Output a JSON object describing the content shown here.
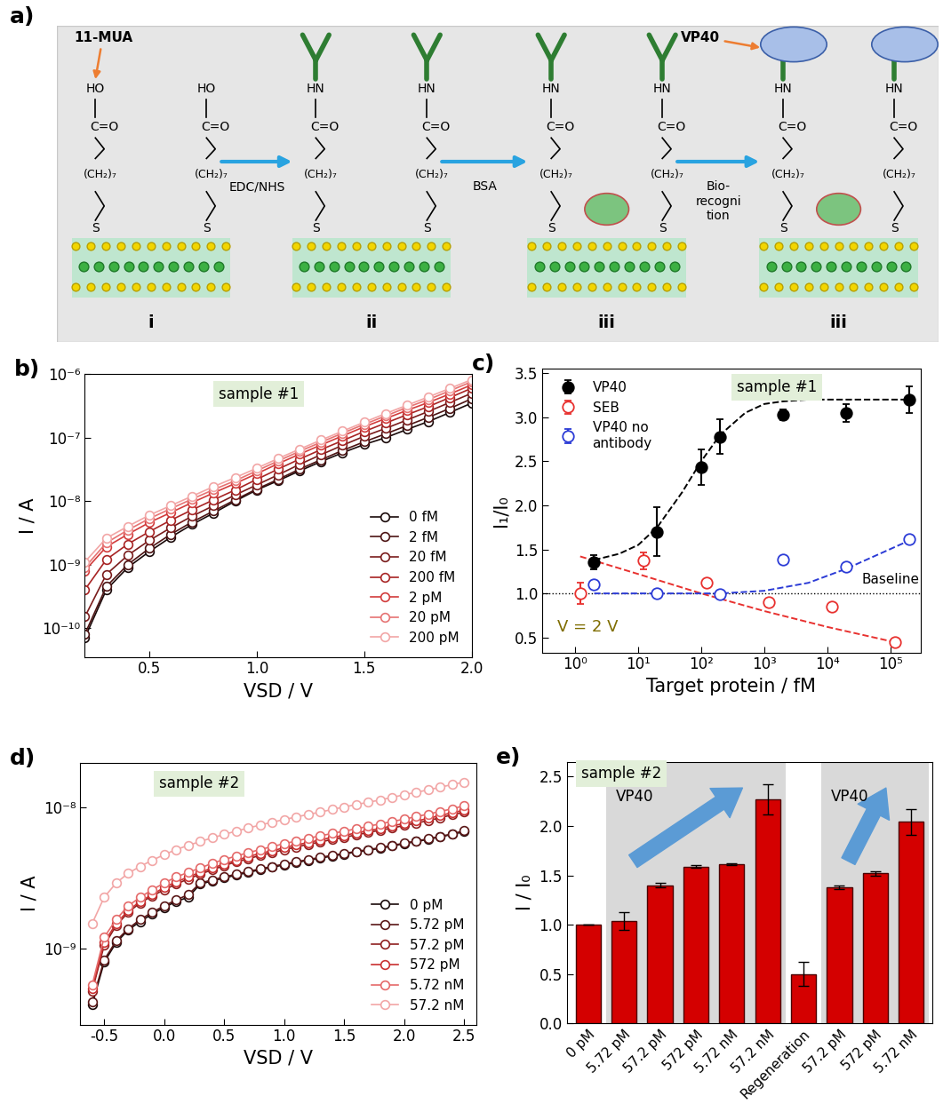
{
  "schematic": {
    "panel": "a)",
    "chain": {
      "anchor": "S",
      "spacer": "(CH₂)₇",
      "group": "C=O"
    },
    "stages": [
      {
        "label": "i",
        "head": "HO",
        "antibody": false,
        "bsa": false,
        "target": false
      },
      {
        "label": "ii",
        "head": "HN",
        "antibody": true,
        "bsa": false,
        "target": false
      },
      {
        "label": "iii",
        "head": "HN",
        "antibody": true,
        "bsa": true,
        "target": false
      },
      {
        "label": "iii",
        "head": "HN",
        "antibody": true,
        "bsa": true,
        "target": true
      }
    ],
    "steps": [
      "EDC/NHS",
      "BSA",
      "Bio-\nrecogni\ntion"
    ],
    "callouts": {
      "linker": "11-MUA",
      "target": "VP40"
    }
  },
  "chart_data": [
    {
      "type": "line",
      "panel": "b)",
      "tag": "sample #1",
      "log": "y",
      "legend": "lower right",
      "xlabel": "VSD / V",
      "ylabel": "I / A",
      "xlim": [
        0.2,
        2.0
      ],
      "xticks": [
        0.5,
        1.0,
        1.5,
        2.0
      ],
      "ylim": [
        3.5e-11,
        1e-06
      ],
      "yticks": [
        {
          "value": 1e-10,
          "label": "10⁻¹⁰"
        },
        {
          "value": 1e-09,
          "label": "10⁻⁹"
        },
        {
          "value": 1e-08,
          "label": "10⁻⁸"
        },
        {
          "value": 1e-07,
          "label": "10⁻⁷"
        },
        {
          "value": 1e-06,
          "label": "10⁻⁶"
        }
      ],
      "x": [
        0.2,
        0.3,
        0.4,
        0.5,
        0.6,
        0.7,
        0.8,
        0.9,
        1.0,
        1.1,
        1.2,
        1.3,
        1.4,
        1.5,
        1.6,
        1.7,
        1.8,
        1.9,
        2.0
      ],
      "series": [
        {
          "name": "0 fM",
          "color": "#1a0a0a",
          "marker": "open-circle",
          "line_style": "solid",
          "values": [
            7e-11,
            4e-10,
            9e-10,
            1.6e-09,
            2.7e-09,
            4.3e-09,
            6.5e-09,
            1e-08,
            1.5e-08,
            2.1e-08,
            3e-08,
            4.2e-08,
            5.8e-08,
            7.8e-08,
            1e-07,
            1.35e-07,
            1.8e-07,
            2.5e-07,
            3.5e-07
          ]
        },
        {
          "name": "2 fM",
          "color": "#4d1414",
          "marker": "open-circle",
          "line_style": "solid",
          "values": [
            8e-11,
            4.5e-10,
            1e-09,
            1.8e-09,
            3e-09,
            4.7e-09,
            7e-09,
            1.05e-08,
            1.55e-08,
            2.2e-08,
            3.2e-08,
            4.5e-08,
            6.3e-08,
            8.6e-08,
            1.15e-07,
            1.55e-07,
            2.1e-07,
            2.9e-07,
            4.1e-07
          ]
        },
        {
          "name": "20 fM",
          "color": "#7a1c1c",
          "marker": "open-circle",
          "line_style": "solid",
          "values": [
            1.5e-10,
            7e-10,
            1.4e-09,
            2.4e-09,
            3.8e-09,
            5.8e-09,
            8.5e-09,
            1.25e-08,
            1.8e-08,
            2.6e-08,
            3.8e-08,
            5.4e-08,
            7.6e-08,
            1.05e-07,
            1.4e-07,
            1.9e-07,
            2.6e-07,
            3.6e-07,
            5e-07
          ]
        },
        {
          "name": "200 fM",
          "color": "#a82424",
          "marker": "open-circle",
          "line_style": "solid",
          "values": [
            4e-10,
            1.2e-09,
            2.1e-09,
            3.3e-09,
            5e-09,
            7.3e-09,
            1.05e-08,
            1.5e-08,
            2.2e-08,
            3.2e-08,
            4.6e-08,
            6.5e-08,
            9e-08,
            1.25e-07,
            1.7e-07,
            2.3e-07,
            3.1e-07,
            4.3e-07,
            6e-07
          ]
        },
        {
          "name": "2 pM",
          "color": "#d23c3c",
          "marker": "open-circle",
          "line_style": "solid",
          "values": [
            8e-10,
            1.9e-09,
            3e-09,
            4.6e-09,
            6.6e-09,
            9.5e-09,
            1.35e-08,
            1.9e-08,
            2.7e-08,
            3.9e-08,
            5.5e-08,
            7.7e-08,
            1.07e-07,
            1.48e-07,
            2e-07,
            2.7e-07,
            3.6e-07,
            4.9e-07,
            6.8e-07
          ]
        },
        {
          "name": "20 pM",
          "color": "#e67373",
          "marker": "open-circle",
          "line_style": "solid",
          "values": [
            9e-10,
            2.2e-09,
            3.5e-09,
            5.3e-09,
            7.6e-09,
            1.08e-08,
            1.52e-08,
            2.1e-08,
            3e-08,
            4.3e-08,
            6.1e-08,
            8.5e-08,
            1.18e-07,
            1.62e-07,
            2.2e-07,
            3e-07,
            4e-07,
            5.5e-07,
            7.6e-07
          ]
        },
        {
          "name": "200 pM",
          "color": "#f2a6a6",
          "marker": "open-circle",
          "line_style": "solid",
          "values": [
            1.1e-09,
            2.6e-09,
            4e-09,
            6e-09,
            8.5e-09,
            1.2e-08,
            1.7e-08,
            2.35e-08,
            3.3e-08,
            4.7e-08,
            6.6e-08,
            9.2e-08,
            1.27e-07,
            1.75e-07,
            2.4e-07,
            3.25e-07,
            4.4e-07,
            6e-07,
            8.2e-07
          ]
        }
      ]
    },
    {
      "type": "scatter",
      "panel": "c)",
      "tag": "sample #1",
      "log": "x",
      "legend": "upper left",
      "xlabel": "Target protein / fM",
      "ylabel": "I₁/I₀",
      "xlim": [
        0.3,
        300000
      ],
      "xticks": [
        {
          "value": 1,
          "label": "10⁰"
        },
        {
          "value": 10,
          "label": "10¹"
        },
        {
          "value": 100,
          "label": "10²"
        },
        {
          "value": 1000,
          "label": "10³"
        },
        {
          "value": 10000,
          "label": "10⁴"
        },
        {
          "value": 100000,
          "label": "10⁵"
        }
      ],
      "ylim": [
        0.33,
        3.55
      ],
      "yticks": [
        0.5,
        1.0,
        1.5,
        2.0,
        2.5,
        3.0,
        3.5
      ],
      "series": [
        {
          "name": "VP40",
          "color": "#000000",
          "marker": "circle",
          "x": [
            2,
            20,
            100,
            200,
            2000,
            20000,
            200000
          ],
          "values": [
            1.35,
            1.7,
            2.43,
            2.78,
            3.03,
            3.05,
            3.2
          ],
          "errors": [
            0.08,
            0.28,
            0.2,
            0.2,
            0.06,
            0.1,
            0.15
          ],
          "fit": {
            "line_style": "dashed",
            "x": [
              2,
              5,
              10,
              20,
              50,
              100,
              200,
              500,
              1000,
              2000,
              5000,
              10000,
              100000,
              200000
            ],
            "values": [
              1.38,
              1.45,
              1.55,
              1.75,
              2.15,
              2.5,
              2.8,
              3.05,
              3.15,
              3.18,
              3.2,
              3.2,
              3.2,
              3.2
            ]
          }
        },
        {
          "name": "SEB",
          "color": "#e8312f",
          "marker": "open-circle",
          "x": [
            1.2,
            12,
            120,
            1200,
            12000,
            120000
          ],
          "values": [
            1.0,
            1.37,
            1.12,
            0.9,
            0.85,
            0.45
          ],
          "errors": [
            0.12,
            0.1,
            0.03,
            0.02,
            0.02,
            0.03
          ],
          "fit": {
            "line_style": "dashed",
            "x": [
              1.2,
              10,
              100,
              1000,
              10000,
              130000
            ],
            "values": [
              1.42,
              1.22,
              1.0,
              0.8,
              0.62,
              0.44
            ]
          }
        },
        {
          "name": "VP40 no\nantibody",
          "color": "#2b3bd6",
          "marker": "open-circle",
          "x": [
            2,
            20,
            200,
            2000,
            20000,
            200000
          ],
          "values": [
            1.1,
            1.0,
            0.99,
            1.38,
            1.3,
            1.62
          ],
          "errors": [
            0.03,
            0.02,
            0.02,
            0.03,
            0.03,
            0.03
          ],
          "fit": {
            "line_style": "dashed",
            "x": [
              2,
              20,
              200,
              1000,
              5000,
              20000,
              200000
            ],
            "values": [
              1.0,
              1.0,
              1.0,
              1.03,
              1.12,
              1.28,
              1.6
            ]
          }
        }
      ],
      "reference_line": {
        "value": 1.0,
        "label": "Baseline",
        "line_style": "dotted"
      },
      "annotations": [
        {
          "text": "V = 2 V",
          "color": "#7f6d00"
        }
      ]
    },
    {
      "type": "line",
      "panel": "d)",
      "tag": "sample #2",
      "log": "y",
      "legend": "lower right",
      "xlabel": "VSD / V",
      "ylabel": "I / A",
      "xlim": [
        -0.7,
        2.6
      ],
      "xticks": [
        -0.5,
        0.0,
        0.5,
        1.0,
        1.5,
        2.0,
        2.5
      ],
      "ylim": [
        2.9e-10,
        2.05e-08
      ],
      "yticks": [
        {
          "value": 1e-09,
          "label": "10⁻⁹"
        },
        {
          "value": 1e-08,
          "label": "10⁻⁸"
        }
      ],
      "x": [
        -0.6,
        -0.5,
        -0.4,
        -0.3,
        -0.2,
        -0.1,
        0.0,
        0.1,
        0.2,
        0.3,
        0.4,
        0.5,
        0.6,
        0.7,
        0.8,
        0.9,
        1.0,
        1.1,
        1.2,
        1.3,
        1.4,
        1.5,
        1.6,
        1.7,
        1.8,
        1.9,
        2.0,
        2.1,
        2.2,
        2.3,
        2.4,
        2.5
      ],
      "series": [
        {
          "name": "0 pM",
          "color": "#1a0a0a",
          "marker": "open-circle",
          "line_style": "solid",
          "values": [
            4e-10,
            8e-10,
            1.1e-09,
            1.35e-09,
            1.55e-09,
            1.75e-09,
            1.95e-09,
            2.15e-09,
            2.3e-09,
            2.85e-09,
            3e-09,
            3.15e-09,
            3.3e-09,
            3.45e-09,
            3.6e-09,
            3.75e-09,
            3.9e-09,
            4.05e-09,
            4.2e-09,
            4.35e-09,
            4.5e-09,
            4.65e-09,
            4.8e-09,
            4.95e-09,
            5.1e-09,
            5.3e-09,
            5.5e-09,
            5.7e-09,
            5.9e-09,
            6.15e-09,
            6.4e-09,
            6.7e-09
          ]
        },
        {
          "name": "5.72 pM",
          "color": "#5a1717",
          "marker": "open-circle",
          "line_style": "solid",
          "values": [
            4.2e-10,
            8.3e-10,
            1.13e-09,
            1.38e-09,
            1.6e-09,
            1.8e-09,
            2e-09,
            2.2e-09,
            2.4e-09,
            2.9e-09,
            3.05e-09,
            3.2e-09,
            3.35e-09,
            3.5e-09,
            3.65e-09,
            3.8e-09,
            3.95e-09,
            4.1e-09,
            4.25e-09,
            4.4e-09,
            4.55e-09,
            4.7e-09,
            4.85e-09,
            5e-09,
            5.15e-09,
            5.35e-09,
            5.55e-09,
            5.75e-09,
            5.95e-09,
            6.2e-09,
            6.45e-09,
            6.8e-09
          ]
        },
        {
          "name": "57.2 pM",
          "color": "#8f1f1f",
          "marker": "open-circle",
          "line_style": "solid",
          "values": [
            5e-10,
            1.05e-09,
            1.45e-09,
            1.8e-09,
            2.1e-09,
            2.35e-09,
            2.6e-09,
            2.85e-09,
            3.1e-09,
            3.35e-09,
            3.6e-09,
            3.85e-09,
            4.1e-09,
            4.3e-09,
            4.55e-09,
            4.75e-09,
            5e-09,
            5.2e-09,
            5.45e-09,
            5.65e-09,
            5.9e-09,
            6.1e-09,
            6.35e-09,
            6.6e-09,
            6.85e-09,
            7.1e-09,
            7.4e-09,
            7.7e-09,
            8e-09,
            8.4e-09,
            8.8e-09,
            9.2e-09
          ]
        },
        {
          "name": "572 pM",
          "color": "#c93030",
          "marker": "open-circle",
          "line_style": "solid",
          "values": [
            5.2e-10,
            1.1e-09,
            1.5e-09,
            1.85e-09,
            2.15e-09,
            2.4e-09,
            2.7e-09,
            2.95e-09,
            3.2e-09,
            3.45e-09,
            3.7e-09,
            3.95e-09,
            4.2e-09,
            4.45e-09,
            4.7e-09,
            4.9e-09,
            5.15e-09,
            5.4e-09,
            5.6e-09,
            5.85e-09,
            6.1e-09,
            6.3e-09,
            6.55e-09,
            6.8e-09,
            7.05e-09,
            7.35e-09,
            7.65e-09,
            7.95e-09,
            8.3e-09,
            8.7e-09,
            9.1e-09,
            9.5e-09
          ]
        },
        {
          "name": "5.72 nM",
          "color": "#e56a6a",
          "marker": "open-circle",
          "line_style": "solid",
          "values": [
            5.5e-10,
            1.2e-09,
            1.6e-09,
            2e-09,
            2.3e-09,
            2.6e-09,
            2.9e-09,
            3.2e-09,
            3.45e-09,
            3.7e-09,
            4e-09,
            4.25e-09,
            4.5e-09,
            4.75e-09,
            5e-09,
            5.25e-09,
            5.5e-09,
            5.75e-09,
            6e-09,
            6.25e-09,
            6.5e-09,
            6.75e-09,
            7e-09,
            7.3e-09,
            7.6e-09,
            7.9e-09,
            8.2e-09,
            8.55e-09,
            8.9e-09,
            9.3e-09,
            9.7e-09,
            1.02e-08
          ]
        },
        {
          "name": "57.2 nM",
          "color": "#f2a6a6",
          "marker": "open-circle",
          "line_style": "solid",
          "values": [
            1.5e-09,
            2.3e-09,
            2.9e-09,
            3.4e-09,
            3.8e-09,
            4.2e-09,
            4.6e-09,
            5e-09,
            5.35e-09,
            5.7e-09,
            6.05e-09,
            6.4e-09,
            6.75e-09,
            7.1e-09,
            7.45e-09,
            7.8e-09,
            8.15e-09,
            8.5e-09,
            8.85e-09,
            9.2e-09,
            9.6e-09,
            1e-08,
            1.04e-08,
            1.08e-08,
            1.12e-08,
            1.17e-08,
            1.22e-08,
            1.27e-08,
            1.32e-08,
            1.38e-08,
            1.44e-08,
            1.5e-08
          ]
        }
      ]
    },
    {
      "type": "bar",
      "panel": "e)",
      "tag": "sample #2",
      "ylabel": "I / I₀",
      "color": "#d40000",
      "categories": [
        "0 pM",
        "5.72 pM",
        "57.2 pM",
        "572 pM",
        "5.72 nM",
        "57.2 nM",
        "Regeneration",
        "57.2 pM",
        "572 pM",
        "5.72 nM"
      ],
      "values": [
        1.0,
        1.04,
        1.4,
        1.59,
        1.61,
        2.27,
        0.5,
        1.38,
        1.52,
        2.04
      ],
      "errors": [
        0.0,
        0.09,
        0.02,
        0.01,
        0.01,
        0.15,
        0.12,
        0.02,
        0.02,
        0.13
      ],
      "groups": [
        null,
        "VP40",
        "VP40",
        "VP40",
        "VP40",
        "VP40",
        null,
        "VP40",
        "VP40",
        "VP40"
      ],
      "ylim": [
        0,
        2.65
      ],
      "yticks": [
        0.0,
        0.5,
        1.0,
        1.5,
        2.0,
        2.5
      ]
    }
  ]
}
